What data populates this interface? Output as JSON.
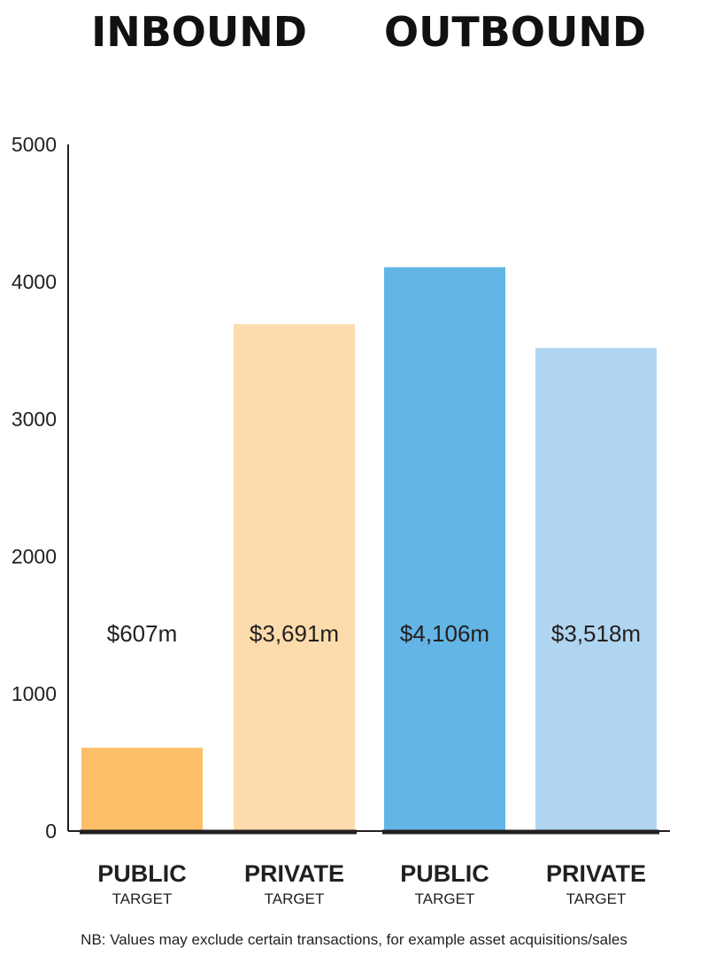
{
  "chart_data": {
    "type": "bar",
    "groups": [
      "INBOUND",
      "OUTBOUND"
    ],
    "categories": [
      "PUBLIC TARGET",
      "PRIVATE TARGET",
      "PUBLIC TARGET",
      "PRIVATE TARGET"
    ],
    "bars": [
      {
        "group": "INBOUND",
        "label": "PUBLIC",
        "sublabel": "TARGET",
        "value": 607,
        "value_label": "$607m",
        "color": "#FDBF68"
      },
      {
        "group": "INBOUND",
        "label": "PRIVATE",
        "sublabel": "TARGET",
        "value": 3691,
        "value_label": "$3,691m",
        "color": "#FCDCAC"
      },
      {
        "group": "OUTBOUND",
        "label": "PUBLIC",
        "sublabel": "TARGET",
        "value": 4106,
        "value_label": "$4,106m",
        "color": "#62B5E5"
      },
      {
        "group": "OUTBOUND",
        "label": "PRIVATE",
        "sublabel": "TARGET",
        "value": 3518,
        "value_label": "$3,518m",
        "color": "#B0D5F0"
      }
    ],
    "yticks": [
      "0",
      "1000",
      "2000",
      "3000",
      "4000",
      "5000"
    ],
    "ylim": [
      0,
      5000
    ],
    "xlabel": "",
    "ylabel": "",
    "grid": false,
    "footnote": "NB: Values may exclude certain transactions, for example asset acquisitions/sales"
  }
}
